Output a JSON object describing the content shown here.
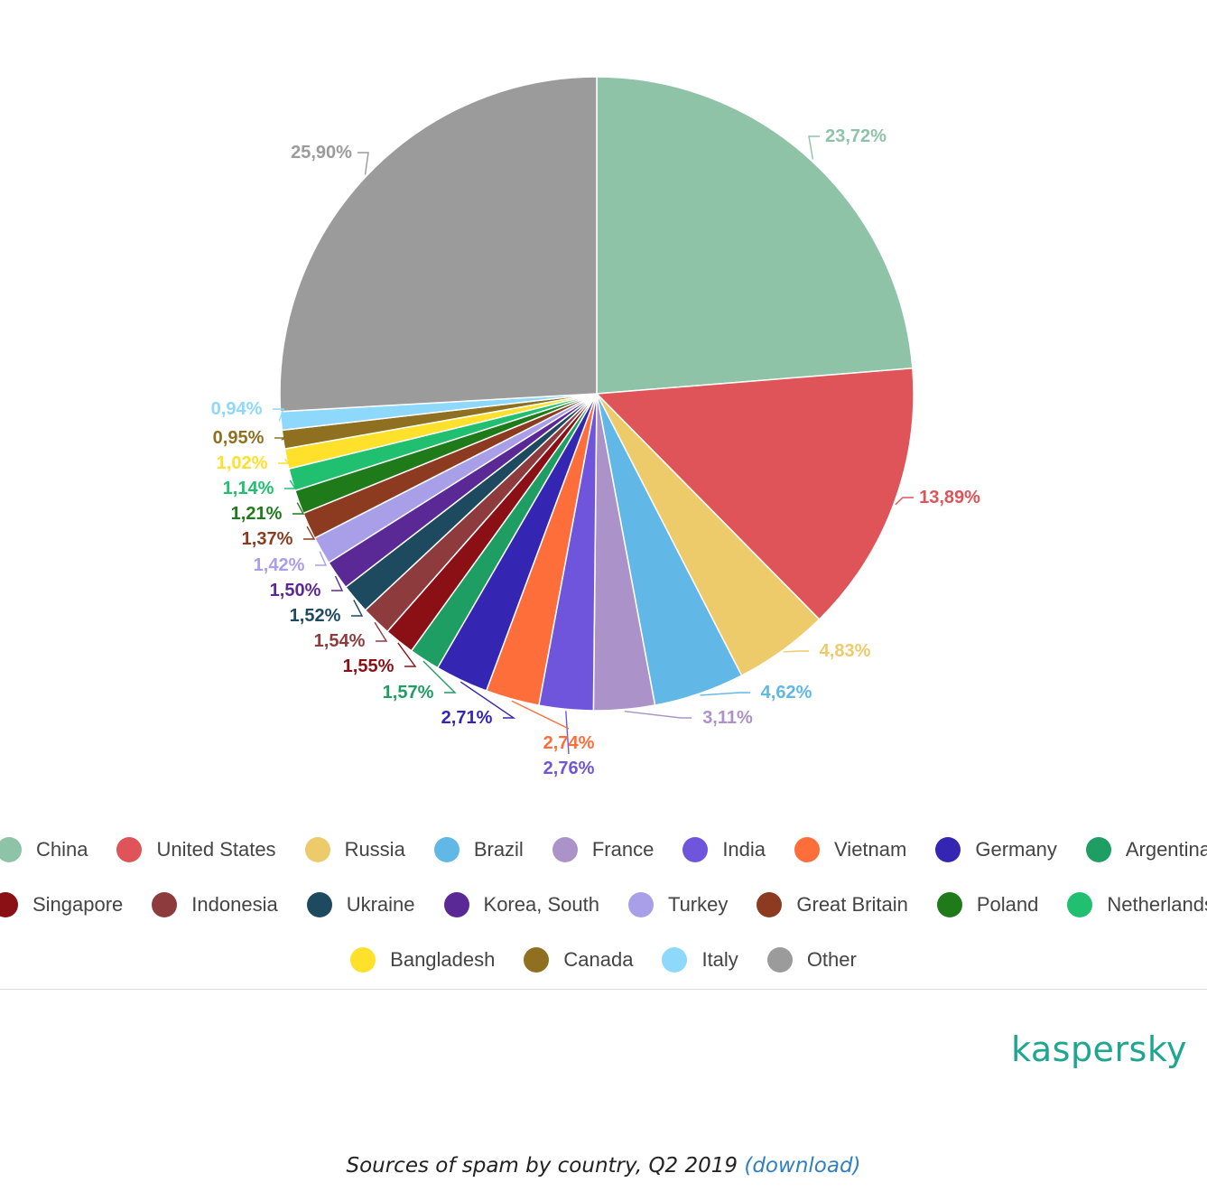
{
  "chart_data": {
    "type": "pie",
    "categories": [
      "China",
      "United States",
      "Russia",
      "Brazil",
      "France",
      "India",
      "Vietnam",
      "Germany",
      "Argentina",
      "Singapore",
      "Indonesia",
      "Ukraine",
      "Korea, South",
      "Turkey",
      "Great Britain",
      "Poland",
      "Netherlands",
      "Bangladesh",
      "Canada",
      "Italy",
      "Other"
    ],
    "values": [
      23.72,
      13.89,
      4.83,
      4.62,
      3.11,
      2.76,
      2.74,
      2.71,
      1.57,
      1.55,
      1.54,
      1.52,
      1.5,
      1.42,
      1.37,
      1.21,
      1.14,
      1.02,
      0.95,
      0.94,
      25.9
    ],
    "labels": [
      "23,72%",
      "13,89%",
      "4,83%",
      "4,62%",
      "3,11%",
      "2,76%",
      "2,74%",
      "2,71%",
      "1,57%",
      "1,55%",
      "1,54%",
      "1,52%",
      "1,50%",
      "1,42%",
      "1,37%",
      "1,21%",
      "1,14%",
      "1,02%",
      "0,95%",
      "0,94%",
      "25,90%"
    ],
    "colors": [
      "#8fc3a8",
      "#de5458",
      "#eecb6a",
      "#61b7e5",
      "#ab93c9",
      "#6f55dc",
      "#fd6e3b",
      "#3426b2",
      "#1f9e63",
      "#8b1016",
      "#8e3b3e",
      "#1e4a60",
      "#5b2996",
      "#a99ee8",
      "#8c3b20",
      "#1f7a1a",
      "#20c070",
      "#ffe02a",
      "#8e7020",
      "#8ed9fb",
      "#9b9b9b"
    ],
    "legend_position": "bottom",
    "start_angle": "12 o'clock, clockwise"
  },
  "legend_rows": [
    [
      0,
      1,
      2,
      3,
      4,
      5,
      6,
      7,
      8
    ],
    [
      9,
      10,
      11,
      12,
      13,
      14,
      15,
      16
    ],
    [
      17,
      18,
      19,
      20
    ]
  ],
  "branding": {
    "logo_text": "kaspersky"
  },
  "caption": {
    "text": "Sources of spam by country, Q2 2019",
    "link_text": "(download)"
  }
}
